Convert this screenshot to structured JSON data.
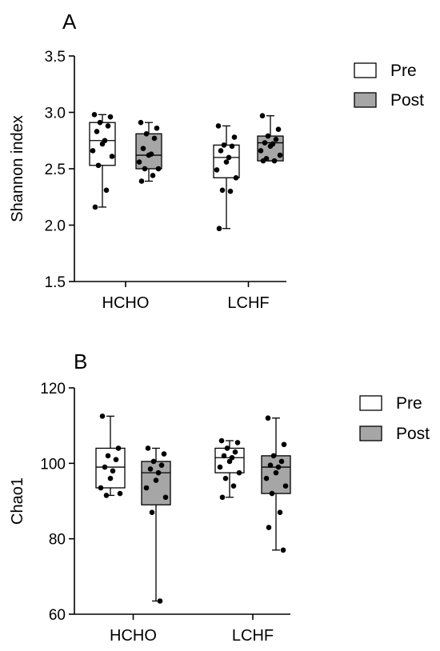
{
  "colors": {
    "pre_fill": "#ffffff",
    "post_fill": "#a6a6a6",
    "stroke": "#000000",
    "point": "#000000"
  },
  "chart_data": [
    {
      "panel": "A",
      "type": "box",
      "ylabel": "Shannon index",
      "ylim": [
        1.5,
        3.5
      ],
      "yticks": [
        "1.5",
        "2.0",
        "2.5",
        "3.0",
        "3.5"
      ],
      "categories": [
        "HCHO",
        "LCHF"
      ],
      "legend": {
        "position": "top-right",
        "entries": [
          "Pre",
          "Post"
        ]
      },
      "series": [
        {
          "name": "Pre",
          "boxes": [
            {
              "category": "HCHO",
              "min": 2.16,
              "q1": 2.53,
              "median": 2.75,
              "q3": 2.91,
              "max": 2.98,
              "points": [
                2.98,
                2.96,
                2.91,
                2.88,
                2.83,
                2.75,
                2.72,
                2.66,
                2.61,
                2.53,
                2.31,
                2.16
              ]
            },
            {
              "category": "LCHF",
              "min": 1.97,
              "q1": 2.42,
              "median": 2.6,
              "q3": 2.71,
              "max": 2.88,
              "points": [
                2.88,
                2.78,
                2.71,
                2.7,
                2.66,
                2.6,
                2.56,
                2.49,
                2.42,
                2.31,
                2.3,
                1.97
              ]
            }
          ]
        },
        {
          "name": "Post",
          "boxes": [
            {
              "category": "HCHO",
              "min": 2.39,
              "q1": 2.5,
              "median": 2.62,
              "q3": 2.81,
              "max": 2.91,
              "points": [
                2.91,
                2.86,
                2.81,
                2.77,
                2.68,
                2.63,
                2.62,
                2.56,
                2.5,
                2.5,
                2.44,
                2.39
              ]
            },
            {
              "category": "LCHF",
              "min": 2.57,
              "q1": 2.57,
              "median": 2.73,
              "q3": 2.79,
              "max": 2.97,
              "points": [
                2.97,
                2.85,
                2.79,
                2.76,
                2.73,
                2.72,
                2.7,
                2.66,
                2.62,
                2.59,
                2.57,
                2.57
              ]
            }
          ]
        }
      ]
    },
    {
      "panel": "B",
      "type": "box",
      "ylabel": "Chao1",
      "ylim": [
        60,
        120
      ],
      "yticks": [
        "60",
        "80",
        "100",
        "120"
      ],
      "categories": [
        "HCHO",
        "LCHF"
      ],
      "legend": {
        "position": "top-right",
        "entries": [
          "Pre",
          "Post"
        ]
      },
      "series": [
        {
          "name": "Pre",
          "boxes": [
            {
              "category": "HCHO",
              "min": 91.5,
              "q1": 93.5,
              "median": 99.0,
              "q3": 104.0,
              "max": 112.5,
              "points": [
                112.5,
                104.0,
                102.0,
                101.0,
                99.0,
                98.0,
                96.0,
                93.5,
                92.0,
                91.5
              ]
            },
            {
              "category": "LCHF",
              "min": 91.0,
              "q1": 97.5,
              "median": 101.5,
              "q3": 104.0,
              "max": 106.0,
              "points": [
                106.0,
                105.5,
                104.0,
                103.0,
                102.0,
                101.5,
                100.5,
                99.0,
                97.5,
                96.0,
                94.0,
                91.0
              ]
            }
          ]
        },
        {
          "name": "Post",
          "boxes": [
            {
              "category": "HCHO",
              "min": 63.5,
              "q1": 89.0,
              "median": 97.5,
              "q3": 100.5,
              "max": 104.0,
              "points": [
                104.0,
                102.5,
                100.5,
                99.5,
                98.5,
                97.5,
                95.5,
                93.5,
                91.0,
                87.0,
                63.5
              ]
            },
            {
              "category": "LCHF",
              "min": 77.0,
              "q1": 92.0,
              "median": 99.0,
              "q3": 102.0,
              "max": 112.0,
              "points": [
                112.0,
                105.0,
                102.0,
                100.5,
                99.5,
                99.0,
                97.5,
                96.0,
                94.0,
                92.0,
                87.0,
                83.0,
                77.0
              ]
            }
          ]
        }
      ]
    }
  ]
}
